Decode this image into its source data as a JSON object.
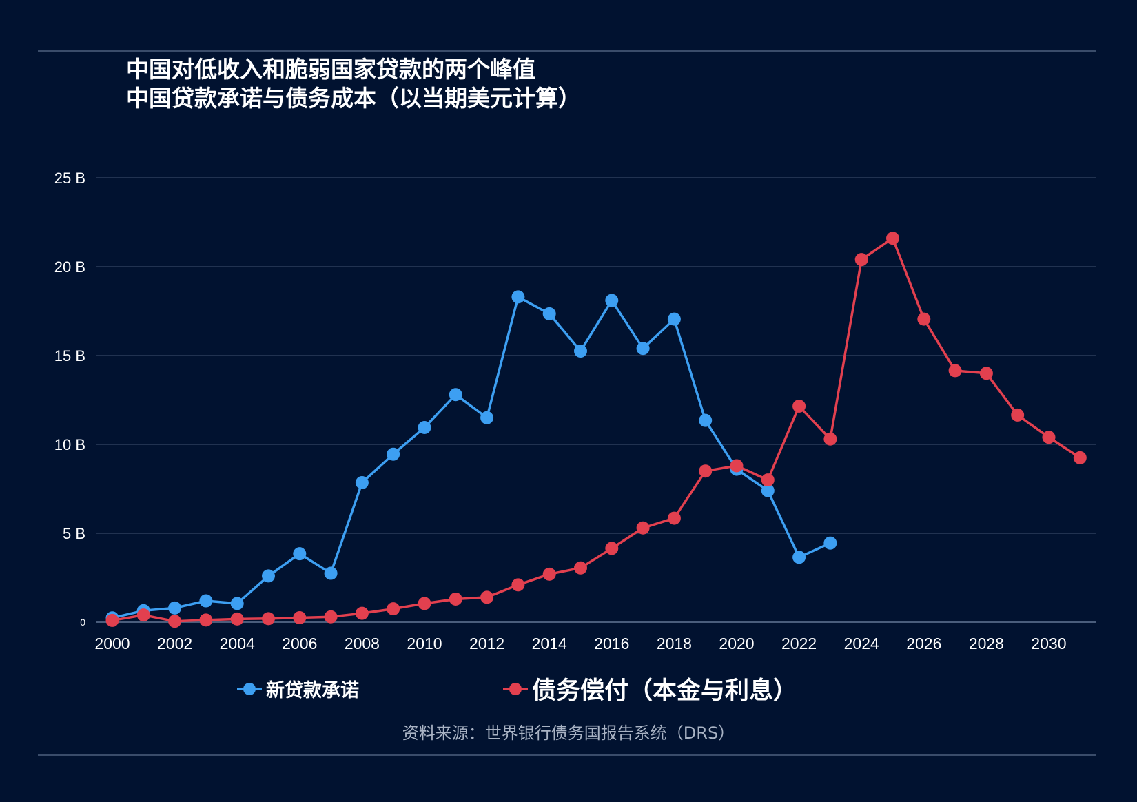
{
  "header": {
    "title_line1": "中国对低收入和脆弱国家贷款的两个峰值",
    "title_line2": "中国贷款承诺与债务成本（以当期美元计算）"
  },
  "source": "资料来源：世界银行债务国报告系统（DRS）",
  "chart_data": {
    "type": "line",
    "title": "中国对低收入和脆弱国家贷款的两个峰值",
    "subtitle": "中国贷款承诺与债务成本（以当期美元计算）",
    "xlabel": "",
    "ylabel": "",
    "ylim": [
      0,
      25
    ],
    "xlim": [
      2000,
      2031
    ],
    "grid": true,
    "legend_position": "bottom",
    "y_ticks": [
      {
        "v": 0,
        "label": "0"
      },
      {
        "v": 5,
        "label": "5 B"
      },
      {
        "v": 10,
        "label": "10 B"
      },
      {
        "v": 15,
        "label": "15 B"
      },
      {
        "v": 20,
        "label": "20 B"
      },
      {
        "v": 25,
        "label": "25 B"
      }
    ],
    "x_ticks": [
      "2000",
      "2002",
      "2004",
      "2006",
      "2008",
      "2010",
      "2012",
      "2014",
      "2016",
      "2018",
      "2020",
      "2022",
      "2024",
      "2026",
      "2028",
      "2030"
    ],
    "series": [
      {
        "name": "新贷款承诺",
        "color": "#3d9ff2",
        "x": [
          2000,
          2001,
          2002,
          2003,
          2004,
          2005,
          2006,
          2007,
          2008,
          2009,
          2010,
          2011,
          2012,
          2013,
          2014,
          2015,
          2016,
          2017,
          2018,
          2019,
          2020,
          2021,
          2022,
          2023
        ],
        "values": [
          0.24,
          0.65,
          0.8,
          1.2,
          1.05,
          2.6,
          3.85,
          2.75,
          7.85,
          9.45,
          10.95,
          12.8,
          11.5,
          18.3,
          17.35,
          15.25,
          18.1,
          15.4,
          17.05,
          11.35,
          8.6,
          7.4,
          3.65,
          4.45
        ]
      },
      {
        "name": "债务偿付（本金与利息）",
        "color": "#e2404f",
        "x": [
          2000,
          2001,
          2002,
          2003,
          2004,
          2005,
          2006,
          2007,
          2008,
          2009,
          2010,
          2011,
          2012,
          2013,
          2014,
          2015,
          2016,
          2017,
          2018,
          2019,
          2020,
          2021,
          2022,
          2023,
          2024,
          2025,
          2026,
          2027,
          2028,
          2029,
          2030,
          2031
        ],
        "values": [
          0.1,
          0.4,
          0.05,
          0.12,
          0.18,
          0.2,
          0.25,
          0.3,
          0.5,
          0.75,
          1.05,
          1.3,
          1.4,
          2.1,
          2.7,
          3.05,
          4.15,
          5.3,
          5.85,
          8.5,
          8.8,
          8.0,
          12.15,
          10.3,
          20.4,
          21.6,
          17.05,
          14.15,
          14.0,
          11.65,
          10.4,
          9.25
        ]
      }
    ]
  }
}
